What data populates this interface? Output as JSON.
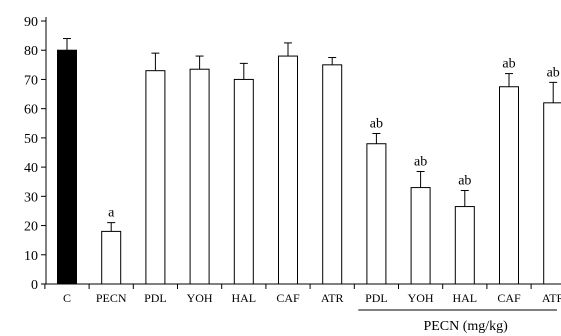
{
  "chart_data": {
    "type": "bar",
    "categories": [
      "C",
      "PECN",
      "PDL",
      "YOH",
      "HAL",
      "CAF",
      "ATR",
      "PDL",
      "YOH",
      "HAL",
      "CAF",
      "ATR"
    ],
    "values": [
      80,
      18,
      73,
      73.5,
      70,
      78,
      75,
      48,
      33,
      26.5,
      67.5,
      62
    ],
    "errors": [
      4,
      3,
      6,
      4.5,
      5.5,
      4.5,
      2.5,
      3.5,
      5.5,
      5.5,
      4.5,
      7
    ],
    "significance": [
      "",
      "a",
      "",
      "",
      "",
      "",
      "",
      "ab",
      "ab",
      "ab",
      "ab",
      "ab"
    ],
    "fill": [
      "#000000",
      "#ffffff",
      "#ffffff",
      "#ffffff",
      "#ffffff",
      "#ffffff",
      "#ffffff",
      "#ffffff",
      "#ffffff",
      "#ffffff",
      "#ffffff",
      "#ffffff"
    ],
    "yticks": [
      0,
      10,
      20,
      30,
      40,
      50,
      60,
      70,
      80,
      90
    ],
    "ylim": [
      0,
      90
    ],
    "group": {
      "label": "PECN (mg/kg)",
      "start_index": 7,
      "end_index": 11
    },
    "title": "",
    "xlabel": "",
    "ylabel": "",
    "grid": false
  }
}
